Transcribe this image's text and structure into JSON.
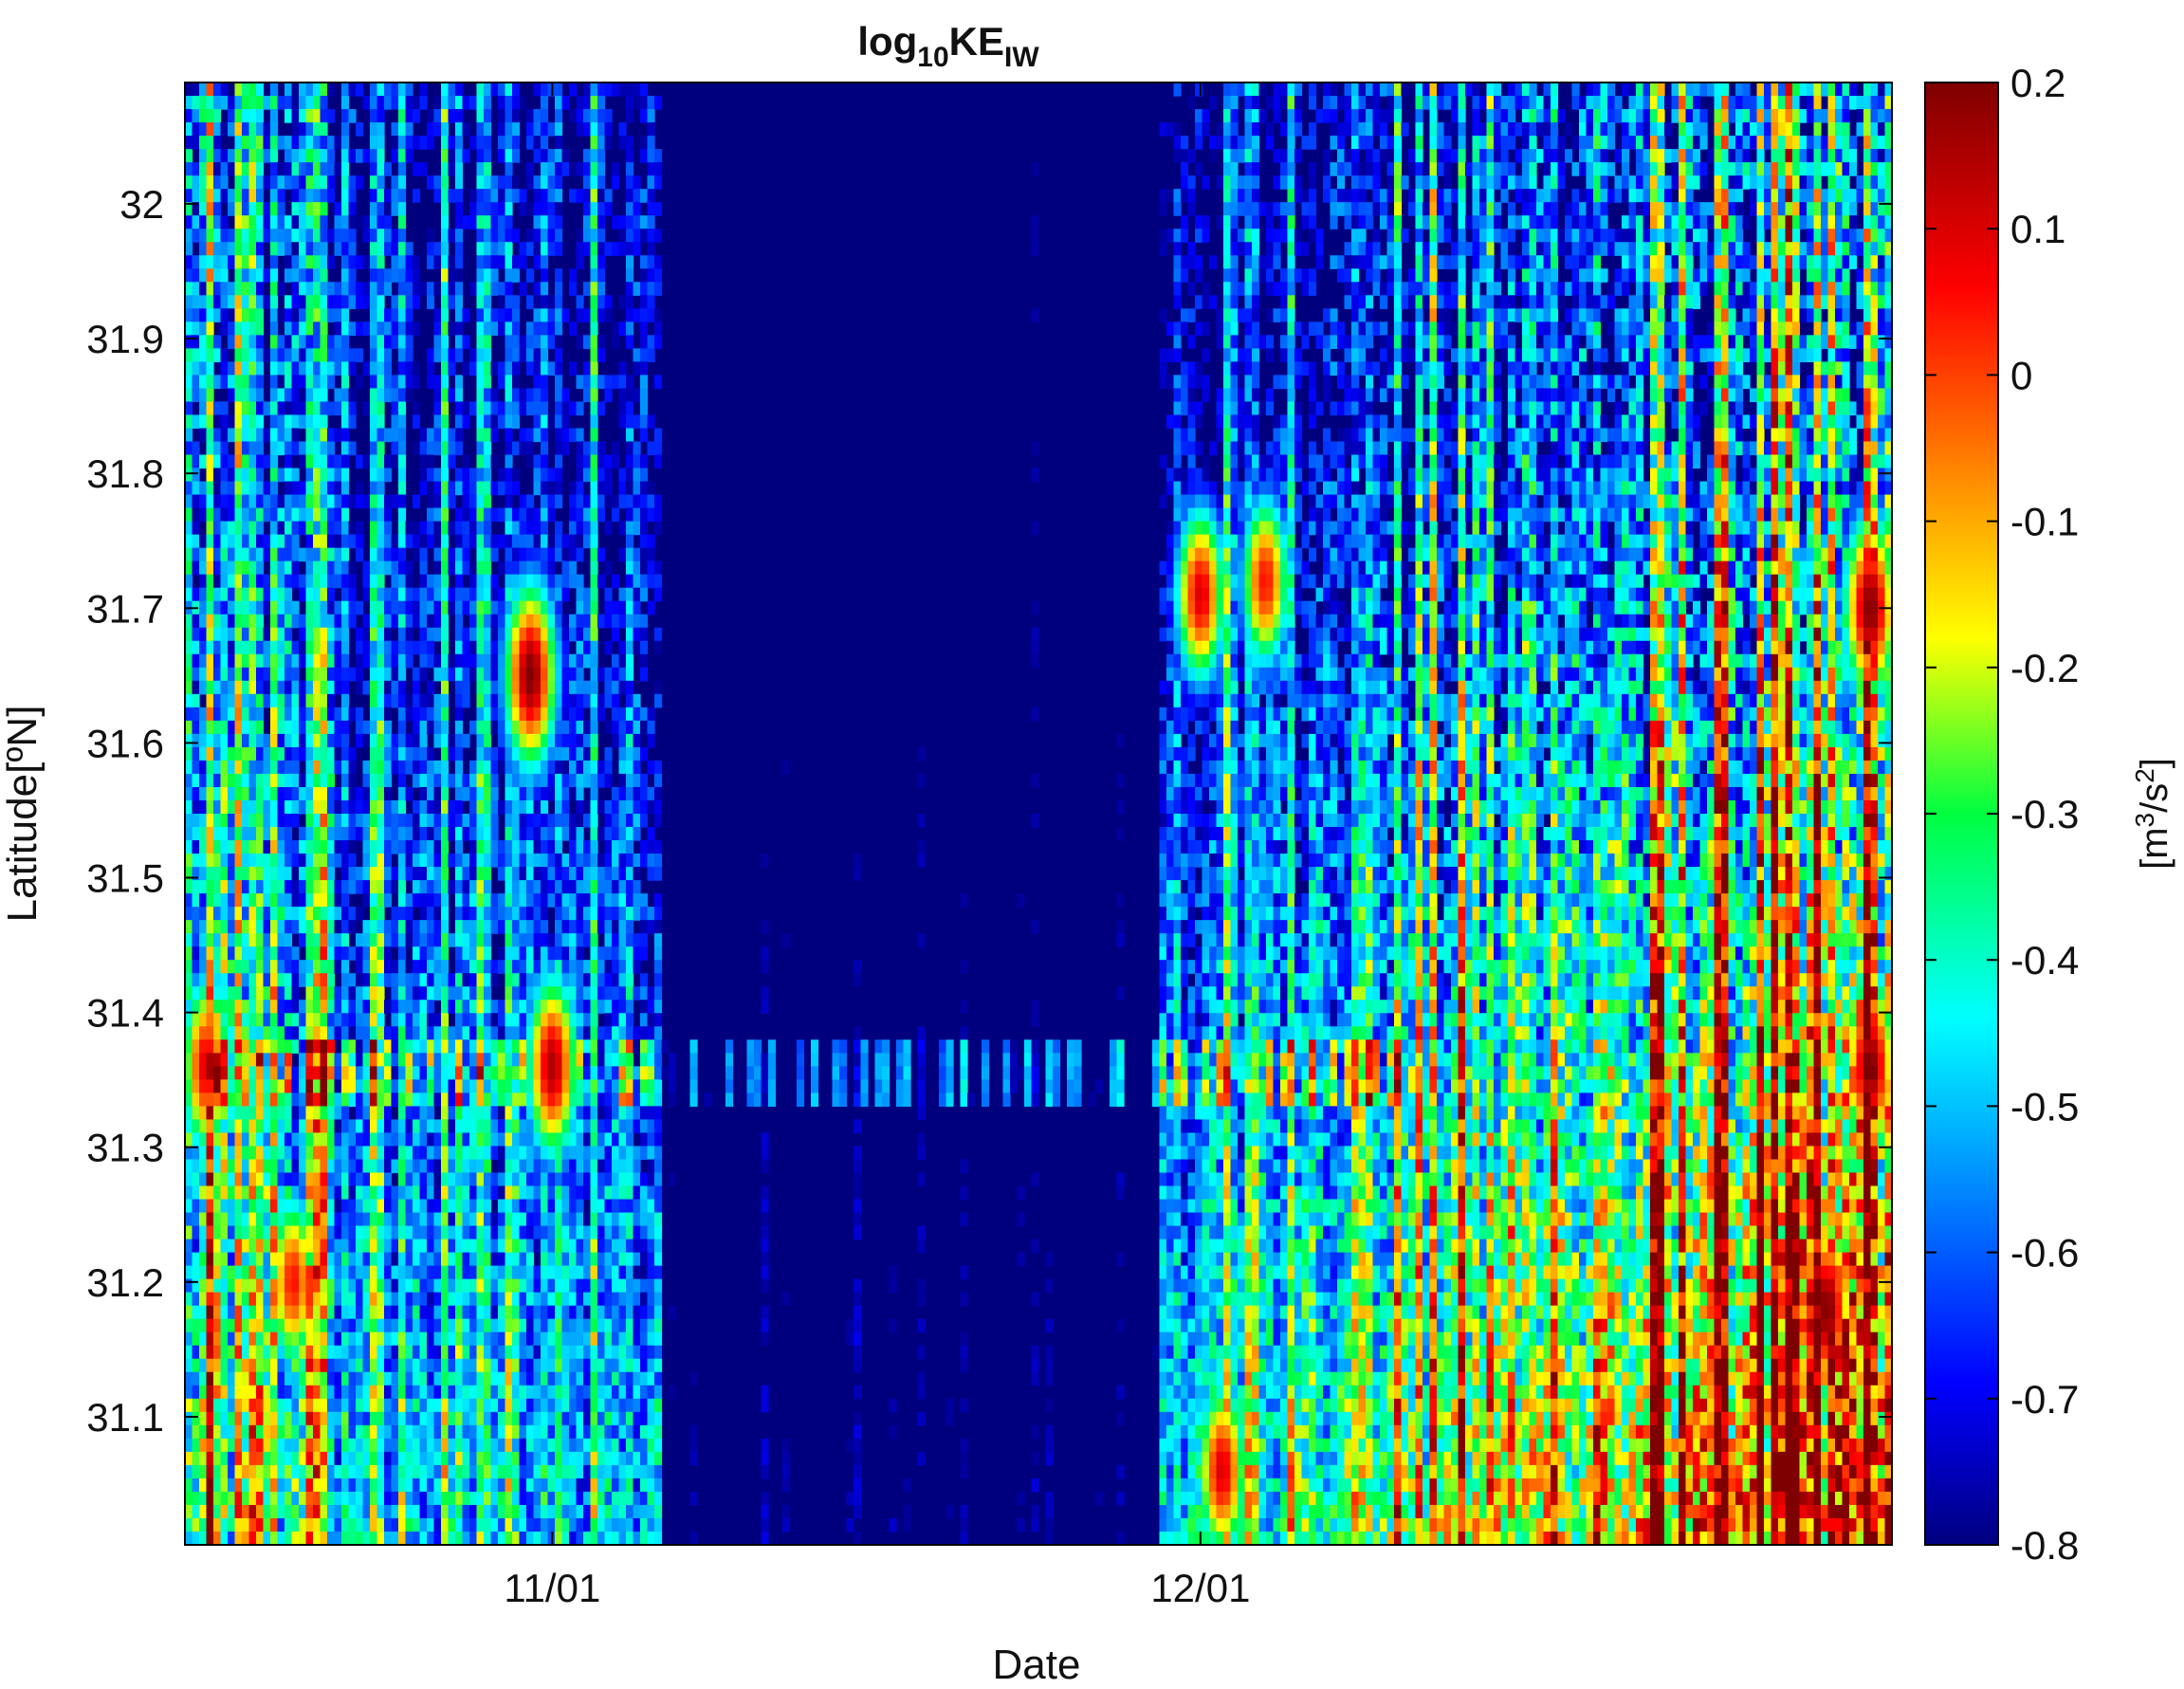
{
  "chart_data": {
    "type": "heatmap",
    "title": {
      "base": "log",
      "base_sub": "10",
      "main": "KE",
      "main_sub": "IW"
    },
    "xlabel": "Date",
    "ylabel": "Latitude[ºN]",
    "x_ticks": [
      "11/01",
      "12/01"
    ],
    "y_ticks": [
      "31.1",
      "31.2",
      "31.3",
      "31.4",
      "31.5",
      "31.6",
      "31.7",
      "31.8",
      "31.9",
      "32"
    ],
    "x_range_days": [
      -17,
      62
    ],
    "ylim": [
      31.005,
      32.09
    ],
    "colorbar": {
      "label": {
        "pre": "[m",
        "sup1": "3",
        "mid": "/s",
        "sup2": "2",
        "post": "]"
      },
      "range": [
        -0.8,
        0.2
      ],
      "ticks": [
        "0.2",
        "0.1",
        "0",
        "-0.1",
        "-0.2",
        "-0.3",
        "-0.4",
        "-0.5",
        "-0.6",
        "-0.7",
        "-0.8"
      ],
      "colormap": "jet"
    },
    "features": [
      {
        "date": "10/31",
        "lat": 31.65,
        "value": 0.2
      },
      {
        "date": "11/01",
        "lat": 31.36,
        "value": 0.15
      },
      {
        "date": "10/16",
        "lat": 31.36,
        "value": 0.1
      },
      {
        "date": "12/01",
        "lat": 31.71,
        "value": 0.1
      },
      {
        "date": "12/04",
        "lat": 31.72,
        "value": 0.05
      },
      {
        "date": "01/01",
        "lat": 31.36,
        "value": 0.2
      },
      {
        "date": "12/30",
        "lat": 31.18,
        "value": 0.2
      },
      {
        "date": "01/01",
        "lat": 31.7,
        "value": 0.2
      },
      {
        "date": "12/02",
        "lat": 31.06,
        "value": 0.1
      },
      {
        "date": "10/20",
        "lat": 31.2,
        "value": 0.05
      }
    ]
  }
}
